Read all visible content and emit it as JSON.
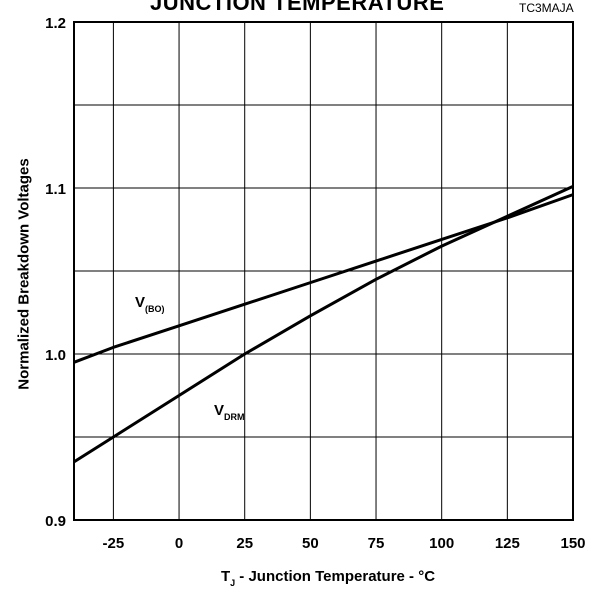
{
  "chart_data": {
    "type": "line",
    "title": "JUNCTION TEMPERATURE",
    "figure_code": "TC3MAJA",
    "xlabel": {
      "main": "T",
      "sub": "J",
      "rest": " - Junction Temperature - °C"
    },
    "ylabel": "Normalized Breakdown Voltages",
    "xlim": [
      -40,
      150
    ],
    "ylim": [
      0.9,
      1.2
    ],
    "x_ticks": [
      -25,
      0,
      25,
      50,
      75,
      100,
      125,
      150
    ],
    "x_tick_labels": [
      "-25",
      "0",
      "25",
      "50",
      "75",
      "100",
      "125",
      "150"
    ],
    "y_ticks": [
      0.9,
      1.0,
      1.1,
      1.2
    ],
    "y_tick_labels": [
      "0.9",
      "1.0",
      "1.1",
      "1.2"
    ],
    "grid": true,
    "series": [
      {
        "name_main": "V",
        "name_sub": "(BO)",
        "x": [
          -40,
          -25,
          0,
          25,
          50,
          75,
          100,
          125,
          150
        ],
        "y": [
          0.995,
          1.004,
          1.017,
          1.03,
          1.043,
          1.056,
          1.069,
          1.082,
          1.096
        ]
      },
      {
        "name_main": "V",
        "name_sub": "DRM",
        "x": [
          -40,
          -25,
          0,
          25,
          50,
          75,
          100,
          125,
          150
        ],
        "y": [
          0.935,
          0.95,
          0.975,
          1.0,
          1.023,
          1.045,
          1.065,
          1.083,
          1.101
        ]
      }
    ]
  }
}
